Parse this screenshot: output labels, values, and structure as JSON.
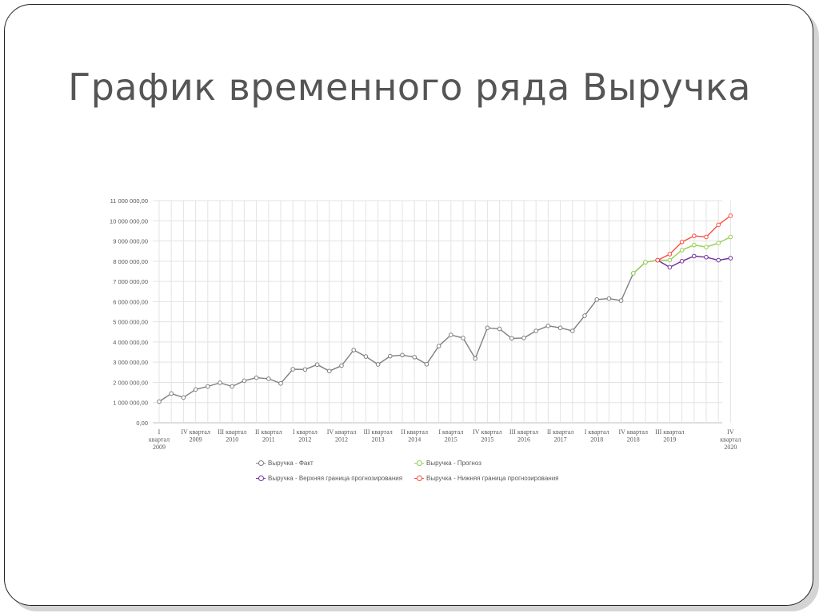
{
  "slide": {
    "title": "График временного ряда Выручка"
  },
  "chart_data": {
    "type": "line",
    "title": "",
    "xlabel": "",
    "ylabel": "",
    "ylim": [
      0,
      11000000
    ],
    "y_ticks": [
      0,
      1000000,
      2000000,
      3000000,
      4000000,
      5000000,
      6000000,
      7000000,
      8000000,
      9000000,
      10000000,
      11000000
    ],
    "y_tick_labels": [
      "0,00",
      "1 000 000,00",
      "2 000 000,00",
      "3 000 000,00",
      "4 000 000,00",
      "5 000 000,00",
      "6 000 000,00",
      "7 000 000,00",
      "8 000 000,00",
      "9 000 000,00",
      "10 000 000,00",
      "11 000 000,00"
    ],
    "grid": true,
    "legend_position": "bottom",
    "x_tick_labels": [
      {
        "index": 0,
        "lines": [
          "I",
          "квартал",
          "2009"
        ]
      },
      {
        "index": 3,
        "lines": [
          "IV квартал",
          "2009"
        ]
      },
      {
        "index": 6,
        "lines": [
          "III квартал",
          "2010"
        ]
      },
      {
        "index": 9,
        "lines": [
          "II квартал",
          "2011"
        ]
      },
      {
        "index": 12,
        "lines": [
          "I квартал",
          "2012"
        ]
      },
      {
        "index": 15,
        "lines": [
          "IV квартал",
          "2012"
        ]
      },
      {
        "index": 18,
        "lines": [
          "III квартал",
          "2013"
        ]
      },
      {
        "index": 21,
        "lines": [
          "II квартал",
          "2014"
        ]
      },
      {
        "index": 24,
        "lines": [
          "I квартал",
          "2015"
        ]
      },
      {
        "index": 27,
        "lines": [
          "IV квартал",
          "2015"
        ]
      },
      {
        "index": 30,
        "lines": [
          "III квартал",
          "2016"
        ]
      },
      {
        "index": 33,
        "lines": [
          "II квартал",
          "2017"
        ]
      },
      {
        "index": 36,
        "lines": [
          "I квартал",
          "2018"
        ]
      },
      {
        "index": 39,
        "lines": [
          "IV квартал",
          "2018"
        ]
      },
      {
        "index": 42,
        "lines": [
          "III квартал",
          "2019"
        ]
      },
      {
        "index": 47,
        "lines": [
          "IV",
          "квартал",
          "2020"
        ]
      }
    ],
    "series": [
      {
        "name": "Выручка - Факт",
        "color": "#7f7f7f",
        "start_index": 0,
        "values": [
          1050000,
          1450000,
          1250000,
          1650000,
          1800000,
          1980000,
          1800000,
          2080000,
          2230000,
          2180000,
          1950000,
          2650000,
          2640000,
          2880000,
          2560000,
          2830000,
          3600000,
          3280000,
          2890000,
          3300000,
          3350000,
          3250000,
          2900000,
          3800000,
          4350000,
          4200000,
          3180000,
          4700000,
          4650000,
          4180000,
          4200000,
          4550000,
          4800000,
          4700000,
          4550000,
          5300000,
          6100000,
          6150000,
          6050000,
          7400000,
          7950000,
          8050000
        ]
      },
      {
        "name": "Выручка - Прогноз",
        "color": "#92d050",
        "start_index": 39,
        "values": [
          7400000,
          7950000,
          8050000,
          8050000,
          8550000,
          8800000,
          8700000,
          8900000,
          9200000
        ]
      },
      {
        "name": "Выручка - Верхняя граница прогнозирования",
        "color": "#7030a0",
        "start_index": 41,
        "values": [
          8050000,
          7700000,
          8000000,
          8250000,
          8200000,
          8050000,
          8150000
        ]
      },
      {
        "name": "Выручка - Нижняя граница прогнозирования",
        "color": "#ff4b3e",
        "start_index": 41,
        "values": [
          8050000,
          8350000,
          8950000,
          9250000,
          9200000,
          9800000,
          10250000
        ]
      }
    ]
  }
}
